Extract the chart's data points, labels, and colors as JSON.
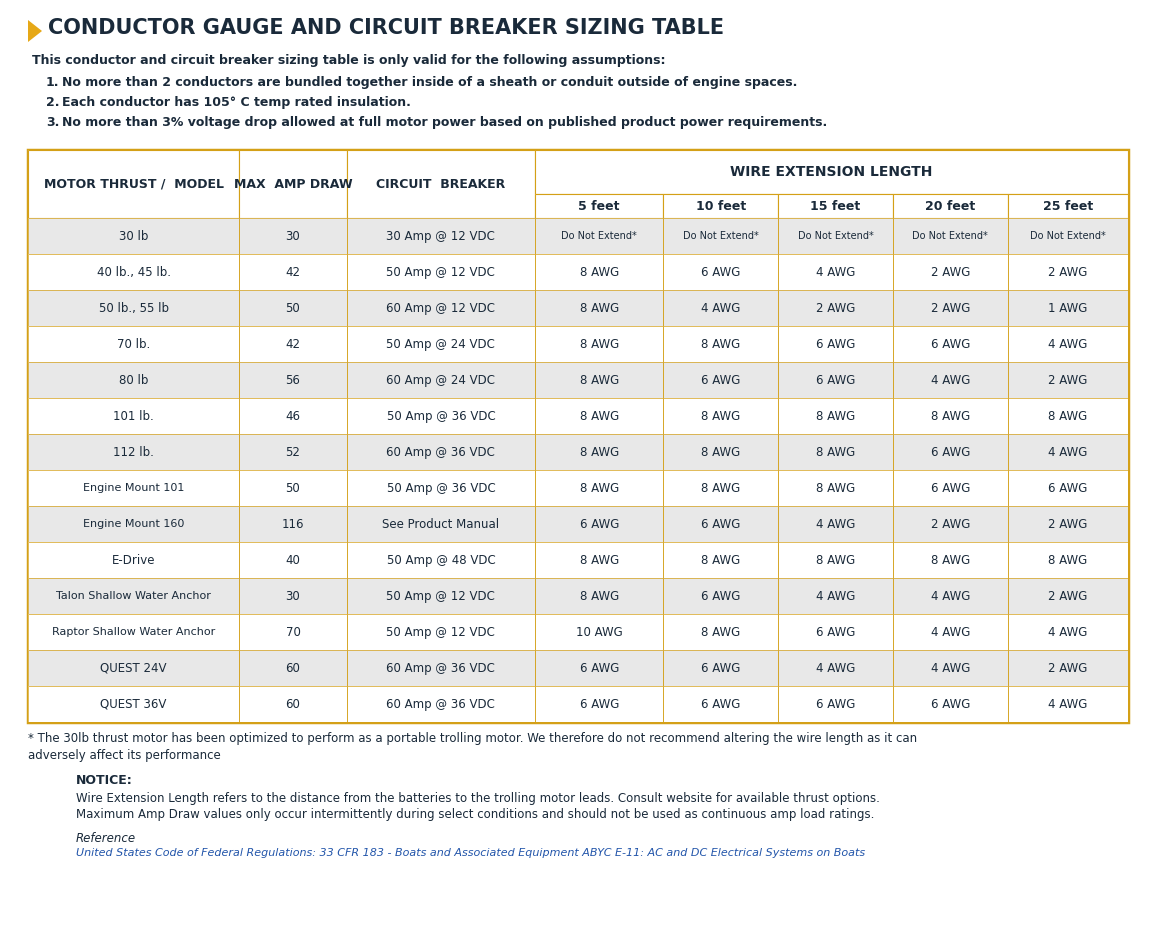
{
  "title": "CONDUCTOR GAUGE AND CIRCUIT BREAKER SIZING TABLE",
  "title_color": "#1a2a3a",
  "accent_color": "#e6a817",
  "intro_text": "This conductor and circuit breaker sizing table is only valid for the following assumptions:",
  "assumptions": [
    "No more than 2 conductors are bundled together inside of a sheath or conduit outside of engine spaces.",
    "Each conductor has 105° C temp rated insulation.",
    "No more than 3% voltage drop allowed at full motor power based on published product power requirements."
  ],
  "col_headers": [
    "MOTOR THRUST /  MODEL",
    "MAX  AMP DRAW",
    "CIRCUIT  BREAKER",
    "5 feet",
    "10 feet",
    "15 feet",
    "20 feet",
    "25 feet"
  ],
  "wire_ext_header": "WIRE EXTENSION LENGTH",
  "rows": [
    [
      "30 lb",
      "30",
      "30 Amp @ 12 VDC",
      "Do Not Extend*",
      "Do Not Extend*",
      "Do Not Extend*",
      "Do Not Extend*",
      "Do Not Extend*"
    ],
    [
      "40 lb., 45 lb.",
      "42",
      "50 Amp @ 12 VDC",
      "8 AWG",
      "6 AWG",
      "4 AWG",
      "2 AWG",
      "2 AWG"
    ],
    [
      "50 lb., 55 lb",
      "50",
      "60 Amp @ 12 VDC",
      "8 AWG",
      "4 AWG",
      "2 AWG",
      "2 AWG",
      "1 AWG"
    ],
    [
      "70 lb.",
      "42",
      "50 Amp @ 24 VDC",
      "8 AWG",
      "8 AWG",
      "6 AWG",
      "6 AWG",
      "4 AWG"
    ],
    [
      "80 lb",
      "56",
      "60 Amp @ 24 VDC",
      "8 AWG",
      "6 AWG",
      "6 AWG",
      "4 AWG",
      "2 AWG"
    ],
    [
      "101 lb.",
      "46",
      "50 Amp @ 36 VDC",
      "8 AWG",
      "8 AWG",
      "8 AWG",
      "8 AWG",
      "8 AWG"
    ],
    [
      "112 lb.",
      "52",
      "60 Amp @ 36 VDC",
      "8 AWG",
      "8 AWG",
      "8 AWG",
      "6 AWG",
      "4 AWG"
    ],
    [
      "Engine Mount 101",
      "50",
      "50 Amp @ 36 VDC",
      "8 AWG",
      "8 AWG",
      "8 AWG",
      "6 AWG",
      "6 AWG"
    ],
    [
      "Engine Mount 160",
      "116",
      "See Product Manual",
      "6 AWG",
      "6 AWG",
      "4 AWG",
      "2 AWG",
      "2 AWG"
    ],
    [
      "E-Drive",
      "40",
      "50 Amp @ 48 VDC",
      "8 AWG",
      "8 AWG",
      "8 AWG",
      "8 AWG",
      "8 AWG"
    ],
    [
      "Talon Shallow Water Anchor",
      "30",
      "50 Amp @ 12 VDC",
      "8 AWG",
      "6 AWG",
      "4 AWG",
      "4 AWG",
      "2 AWG"
    ],
    [
      "Raptor Shallow Water Anchor",
      "70",
      "50 Amp @ 12 VDC",
      "10 AWG",
      "8 AWG",
      "6 AWG",
      "4 AWG",
      "4 AWG"
    ],
    [
      "QUEST 24V",
      "60",
      "60 Amp @ 36 VDC",
      "6 AWG",
      "6 AWG",
      "4 AWG",
      "4 AWG",
      "2 AWG"
    ],
    [
      "QUEST 36V",
      "60",
      "60 Amp @ 36 VDC",
      "6 AWG",
      "6 AWG",
      "6 AWG",
      "6 AWG",
      "4 AWG"
    ]
  ],
  "footnote_star": "* The 30lb thrust motor has been optimized to perform as a portable trolling motor. We therefore do not recommend altering the wire length as it can",
  "footnote_line2": "adversely affect its performance",
  "notice_title": "NOTICE:",
  "notice_lines": [
    "Wire Extension Length refers to the distance from the batteries to the trolling motor leads. Consult website for available thrust options.",
    "Maximum Amp Draw values only occur intermittently during select conditions and should not be used as continuous amp load ratings."
  ],
  "reference_label": "Reference",
  "reference_text": "United States Code of Federal Regulations: 33 CFR 183 - Boats and Associated Equipment ABYC E-11: AC and DC Electrical Systems on Boats",
  "bg_color": "#ffffff",
  "table_border_color": "#d4a017",
  "header_bg": "#ffffff",
  "odd_row_bg": "#e8e8e8",
  "even_row_bg": "#ffffff",
  "text_color": "#1a2a3a",
  "header_text_color": "#1a2a3a",
  "link_color": "#2255aa"
}
